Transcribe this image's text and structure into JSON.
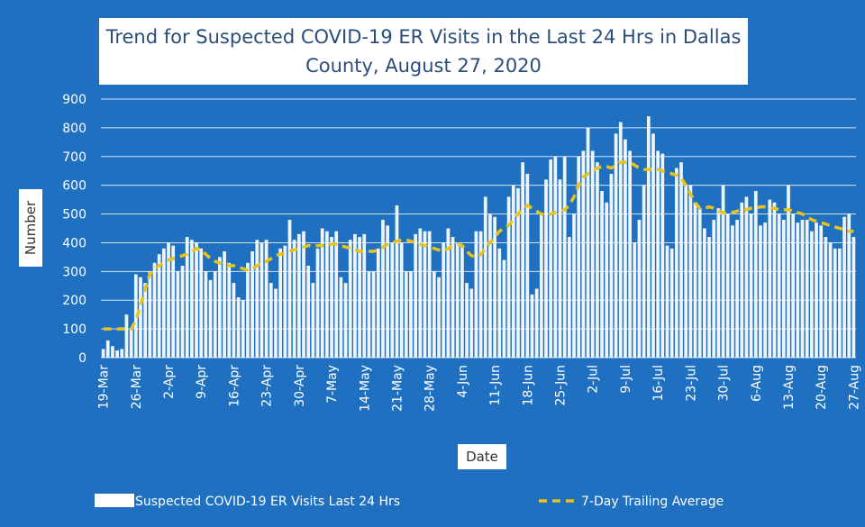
{
  "chart_data": {
    "type": "bar",
    "title": "Trend for Suspected COVID-19 ER Visits in the Last 24 Hrs in Dallas County, August 27, 2020",
    "x_label": "Date",
    "y_label": "Number",
    "ylim": [
      0,
      900
    ],
    "yticks": [
      0,
      100,
      200,
      300,
      400,
      500,
      600,
      700,
      800,
      900
    ],
    "grid": true,
    "categories": [
      "19-Mar",
      null,
      null,
      null,
      null,
      null,
      null,
      "26-Mar",
      null,
      null,
      null,
      null,
      null,
      null,
      "2-Apr",
      null,
      null,
      null,
      null,
      null,
      null,
      "9-Apr",
      null,
      null,
      null,
      null,
      null,
      null,
      "16-Apr",
      null,
      null,
      null,
      null,
      null,
      null,
      "23-Apr",
      null,
      null,
      null,
      null,
      null,
      null,
      "30-Apr",
      null,
      null,
      null,
      null,
      null,
      null,
      "7-May",
      null,
      null,
      null,
      null,
      null,
      null,
      "14-May",
      null,
      null,
      null,
      null,
      null,
      null,
      "21-May",
      null,
      null,
      null,
      null,
      null,
      null,
      "28-May",
      null,
      null,
      null,
      null,
      null,
      null,
      "4-Jun",
      null,
      null,
      null,
      null,
      null,
      null,
      "11-Jun",
      null,
      null,
      null,
      null,
      null,
      null,
      "18-Jun",
      null,
      null,
      null,
      null,
      null,
      null,
      "25-Jun",
      null,
      null,
      null,
      null,
      null,
      null,
      "2-Jul",
      null,
      null,
      null,
      null,
      null,
      null,
      "9-Jul",
      null,
      null,
      null,
      null,
      null,
      null,
      "16-Jul",
      null,
      null,
      null,
      null,
      null,
      null,
      "23-Jul",
      null,
      null,
      null,
      null,
      null,
      null,
      "30-Jul",
      null,
      null,
      null,
      null,
      null,
      null,
      "6-Aug",
      null,
      null,
      null,
      null,
      null,
      null,
      "13-Aug",
      null,
      null,
      null,
      null,
      null,
      null,
      "20-Aug",
      null,
      null,
      null,
      null,
      null,
      null,
      "27-Aug"
    ],
    "series": [
      {
        "name": "Suspected COVID-19 ER Visits Last 24 Hrs",
        "color": "#ffffff",
        "style": "bar",
        "values": [
          30,
          60,
          40,
          25,
          30,
          150,
          100,
          290,
          280,
          260,
          300,
          330,
          360,
          380,
          400,
          390,
          300,
          320,
          420,
          410,
          400,
          380,
          300,
          270,
          300,
          350,
          370,
          330,
          260,
          210,
          200,
          330,
          370,
          410,
          400,
          410,
          260,
          240,
          380,
          390,
          480,
          410,
          430,
          440,
          320,
          260,
          380,
          450,
          440,
          420,
          440,
          280,
          260,
          410,
          430,
          420,
          430,
          300,
          300,
          380,
          480,
          460,
          400,
          530,
          400,
          300,
          300,
          430,
          450,
          440,
          440,
          300,
          280,
          400,
          450,
          420,
          400,
          390,
          260,
          240,
          440,
          440,
          560,
          500,
          490,
          380,
          340,
          560,
          600,
          590,
          680,
          640,
          220,
          240,
          500,
          620,
          690,
          700,
          620,
          700,
          420,
          500,
          700,
          720,
          800,
          720,
          680,
          580,
          540,
          640,
          780,
          820,
          760,
          720,
          400,
          480,
          600,
          840,
          780,
          720,
          710,
          390,
          380,
          660,
          680,
          600,
          600,
          540,
          520,
          450,
          420,
          480,
          520,
          600,
          500,
          460,
          480,
          540,
          560,
          500,
          580,
          460,
          470,
          550,
          540,
          500,
          480,
          600,
          500,
          470,
          480,
          480,
          440,
          470,
          460,
          420,
          400,
          380,
          380,
          490,
          500,
          420
        ]
      },
      {
        "name": "7-Day Trailing Average",
        "color": "#e8c41a",
        "style": "dashed-line",
        "values": [
          100,
          100,
          100,
          100,
          100,
          100,
          100,
          130,
          180,
          240,
          290,
          310,
          320,
          330,
          340,
          345,
          350,
          355,
          360,
          370,
          380,
          375,
          360,
          345,
          335,
          330,
          325,
          320,
          320,
          315,
          310,
          305,
          310,
          320,
          330,
          335,
          345,
          355,
          360,
          365,
          370,
          375,
          380,
          385,
          390,
          390,
          390,
          390,
          390,
          395,
          395,
          390,
          385,
          380,
          375,
          370,
          370,
          370,
          370,
          375,
          385,
          395,
          400,
          405,
          410,
          410,
          405,
          400,
          395,
          390,
          385,
          380,
          375,
          370,
          380,
          390,
          395,
          390,
          370,
          355,
          350,
          360,
          380,
          400,
          420,
          440,
          450,
          460,
          480,
          500,
          520,
          530,
          520,
          510,
          500,
          495,
          500,
          505,
          510,
          515,
          530,
          560,
          600,
          630,
          640,
          650,
          660,
          665,
          665,
          660,
          670,
          680,
          680,
          680,
          670,
          660,
          655,
          655,
          655,
          655,
          650,
          645,
          640,
          635,
          625,
          600,
          570,
          540,
          520,
          520,
          525,
          520,
          510,
          505,
          500,
          505,
          510,
          515,
          515,
          520,
          520,
          525,
          525,
          520,
          520,
          515,
          515,
          515,
          510,
          505,
          500,
          490,
          480,
          475,
          470,
          465,
          460,
          455,
          450,
          445,
          440,
          440
        ]
      }
    ]
  }
}
